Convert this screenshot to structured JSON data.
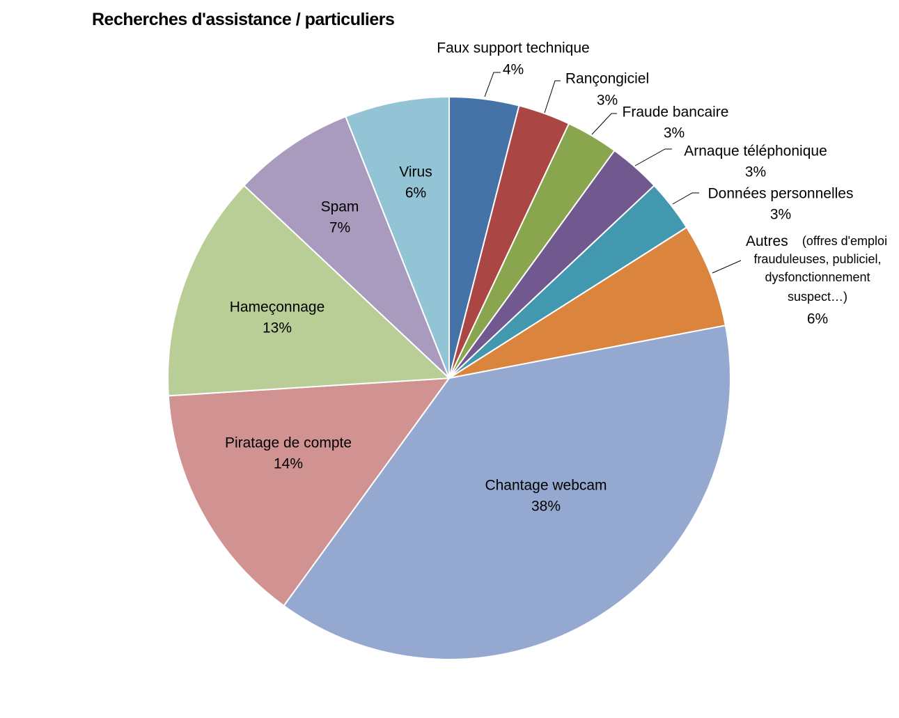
{
  "chart_data": {
    "type": "pie",
    "title": "Recherches d'assistance / particuliers",
    "start_angle_deg": 0,
    "direction": "clockwise",
    "slices": [
      {
        "label": "Faux support technique",
        "value": 4,
        "pct_label": "4%",
        "color": "#4572A7"
      },
      {
        "label": "Rançongiciel",
        "value": 3,
        "pct_label": "3%",
        "color": "#AA4643"
      },
      {
        "label": "Fraude bancaire",
        "value": 3,
        "pct_label": "3%",
        "color": "#89A54E"
      },
      {
        "label": "Arnaque téléphonique",
        "value": 3,
        "pct_label": "3%",
        "color": "#71588F"
      },
      {
        "label": "Données personnelles",
        "value": 3,
        "pct_label": "3%",
        "color": "#4198AF"
      },
      {
        "label": "Autres",
        "label_note": "(offres d'emploi frauduleuses, publiciel, dysfonctionnement suspect…)",
        "note_lines": [
          "(offres d'emploi",
          "frauduleuses, publiciel,",
          "dysfonctionnement",
          "suspect…)"
        ],
        "value": 6,
        "pct_label": "6%",
        "color": "#DB843D"
      },
      {
        "label": "Chantage webcam",
        "value": 38,
        "pct_label": "38%",
        "color": "#95A9D0"
      },
      {
        "label": "Piratage de compte",
        "value": 14,
        "pct_label": "14%",
        "color": "#D19392"
      },
      {
        "label": "Hameçonnage",
        "value": 13,
        "pct_label": "13%",
        "color": "#B9CD96"
      },
      {
        "label": "Spam",
        "value": 7,
        "pct_label": "7%",
        "color": "#A99BBD"
      },
      {
        "label": "Virus",
        "value": 6,
        "pct_label": "6%",
        "color": "#93C4D5"
      }
    ]
  }
}
